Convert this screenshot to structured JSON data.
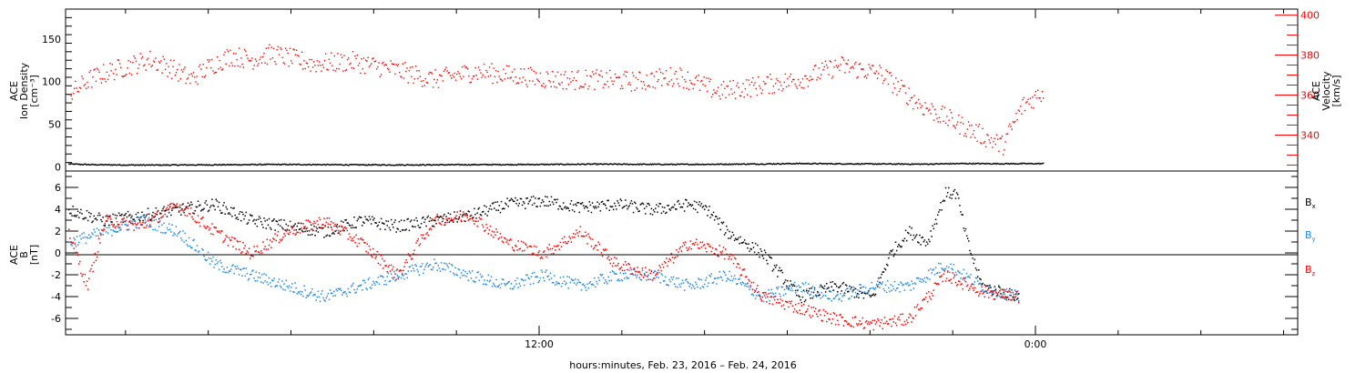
{
  "chart_data": [
    {
      "type": "scatter",
      "panel": "top",
      "title": "",
      "ylabel_lines": [
        "ACE",
        "Ion Density",
        "[cm⁻³]"
      ],
      "ylabel_right_lines": [
        "ACE",
        "Velocity",
        "[km/s]"
      ],
      "y_ticks": [
        "0",
        "50",
        "100",
        "150"
      ],
      "y_ticks_right": [
        "340",
        "360",
        "380",
        "400"
      ],
      "ylim": [
        -5,
        185
      ],
      "ylim_right": [
        322,
        403
      ],
      "grid": false,
      "series": [
        {
          "name": "Ion Density",
          "color": "#000000",
          "axis": "left",
          "points": [
            [
              0,
              4
            ],
            [
              0.3,
              3.5
            ],
            [
              0.6,
              3.2
            ],
            [
              1,
              3
            ],
            [
              1.5,
              2.8
            ],
            [
              2,
              2.7
            ],
            [
              3,
              2.9
            ],
            [
              4,
              3.1
            ],
            [
              5,
              3.4
            ],
            [
              6,
              3.3
            ],
            [
              7,
              3
            ],
            [
              8,
              2.9
            ],
            [
              9,
              3
            ],
            [
              10,
              3.2
            ],
            [
              11,
              3.3
            ],
            [
              12,
              3.5
            ],
            [
              13,
              3.8
            ],
            [
              14,
              3.6
            ],
            [
              15,
              3.5
            ],
            [
              16,
              3.7
            ],
            [
              17,
              4
            ],
            [
              18,
              4.5
            ],
            [
              19,
              4.2
            ],
            [
              20,
              4
            ],
            [
              21,
              3.8
            ],
            [
              22,
              4.5
            ],
            [
              23,
              4.3
            ],
            [
              24,
              4.4
            ]
          ]
        },
        {
          "name": "Velocity",
          "color": "#ff0000",
          "axis": "right",
          "points": [
            [
              0,
              360
            ],
            [
              0.5,
              368
            ],
            [
              1,
              372
            ],
            [
              1.5,
              375
            ],
            [
              2,
              378
            ],
            [
              2.5,
              374
            ],
            [
              3,
              368
            ],
            [
              3.5,
              375
            ],
            [
              4,
              380
            ],
            [
              4.5,
              378
            ],
            [
              5,
              381
            ],
            [
              6,
              376
            ],
            [
              7,
              377
            ],
            [
              8,
              373
            ],
            [
              9,
              368
            ],
            [
              10,
              372
            ],
            [
              11,
              370
            ],
            [
              12,
              368
            ],
            [
              13,
              368
            ],
            [
              14,
              367
            ],
            [
              15,
              370
            ],
            [
              16,
              362
            ],
            [
              17,
              365
            ],
            [
              18,
              368
            ],
            [
              19,
              375
            ],
            [
              20,
              371
            ],
            [
              21,
              355
            ],
            [
              22,
              345
            ],
            [
              23,
              335
            ],
            [
              23.5,
              355
            ],
            [
              24,
              362
            ]
          ]
        }
      ],
      "annotations": []
    },
    {
      "type": "scatter",
      "panel": "bottom",
      "title": "",
      "ylabel_lines": [
        "ACE",
        "B",
        "[nT]"
      ],
      "y_ticks": [
        "-6",
        "-4",
        "-2",
        "0",
        "2",
        "4",
        "6"
      ],
      "ylim": [
        -7.5,
        7.5
      ],
      "x_ticks": [
        "12:00",
        "0:00"
      ],
      "xlabel": "hours:minutes, Feb. 23, 2016 – Feb. 24, 2016",
      "grid": false,
      "legend": [
        "B",
        "B",
        "B"
      ],
      "legend_subscripts": [
        "x",
        "y",
        "z"
      ],
      "legend_colors": [
        "#000000",
        "#1e88e5",
        "#ff0000"
      ],
      "legend_position": "right",
      "series": [
        {
          "name": "Bx",
          "color": "#000000",
          "points": [
            [
              0,
              4
            ],
            [
              1,
              3
            ],
            [
              2,
              3.5
            ],
            [
              3,
              4
            ],
            [
              4,
              4.5
            ],
            [
              5,
              3
            ],
            [
              6,
              2.5
            ],
            [
              7,
              2
            ],
            [
              8,
              3
            ],
            [
              9,
              2.5
            ],
            [
              10,
              3
            ],
            [
              11,
              3.5
            ],
            [
              12,
              4.5
            ],
            [
              13,
              4.8
            ],
            [
              14,
              4.2
            ],
            [
              15,
              4.5
            ],
            [
              16,
              4
            ],
            [
              17,
              4.5
            ],
            [
              17.5,
              4
            ],
            [
              18,
              2
            ],
            [
              19,
              0
            ],
            [
              20,
              -4
            ],
            [
              21,
              -3
            ],
            [
              22,
              -4
            ],
            [
              22.5,
              0
            ],
            [
              23,
              2
            ],
            [
              23.5,
              1
            ],
            [
              24,
              5.5
            ],
            [
              24.3,
              5.5
            ],
            [
              24.6,
              1
            ],
            [
              25,
              -3
            ],
            [
              26,
              -4
            ]
          ]
        },
        {
          "name": "By",
          "color": "#1e88e5",
          "points": [
            [
              0,
              1
            ],
            [
              1,
              2
            ],
            [
              2,
              3
            ],
            [
              3,
              2
            ],
            [
              4,
              -1
            ],
            [
              5,
              -2
            ],
            [
              6,
              -3
            ],
            [
              7,
              -4
            ],
            [
              8,
              -3
            ],
            [
              9,
              -2
            ],
            [
              10,
              -1
            ],
            [
              11,
              -2
            ],
            [
              12,
              -3
            ],
            [
              13,
              -2
            ],
            [
              14,
              -3
            ],
            [
              15,
              -2
            ],
            [
              16,
              -2
            ],
            [
              17,
              -3
            ],
            [
              18,
              -2
            ],
            [
              19,
              -4
            ],
            [
              20,
              -3
            ],
            [
              21,
              -4
            ],
            [
              22,
              -3
            ],
            [
              23,
              -3
            ],
            [
              24,
              -1
            ],
            [
              25,
              -3
            ],
            [
              26,
              -4
            ]
          ]
        },
        {
          "name": "Bz",
          "color": "#ff0000",
          "points": [
            [
              0,
              2
            ],
            [
              0.5,
              -3
            ],
            [
              1,
              3
            ],
            [
              2,
              2.5
            ],
            [
              3,
              4.5
            ],
            [
              4,
              2
            ],
            [
              5,
              0
            ],
            [
              6,
              2
            ],
            [
              7,
              3
            ],
            [
              8,
              1
            ],
            [
              9,
              -2
            ],
            [
              10,
              3
            ],
            [
              11,
              3.5
            ],
            [
              12,
              1
            ],
            [
              13,
              0
            ],
            [
              14,
              2
            ],
            [
              15,
              -1
            ],
            [
              16,
              -2
            ],
            [
              17,
              1
            ],
            [
              18,
              0
            ],
            [
              19,
              -4
            ],
            [
              20,
              -5
            ],
            [
              21,
              -6
            ],
            [
              22,
              -6.5
            ],
            [
              23,
              -6
            ],
            [
              23.5,
              -4
            ],
            [
              24,
              -2
            ],
            [
              25,
              -3.5
            ],
            [
              26,
              -4
            ]
          ]
        }
      ]
    }
  ]
}
